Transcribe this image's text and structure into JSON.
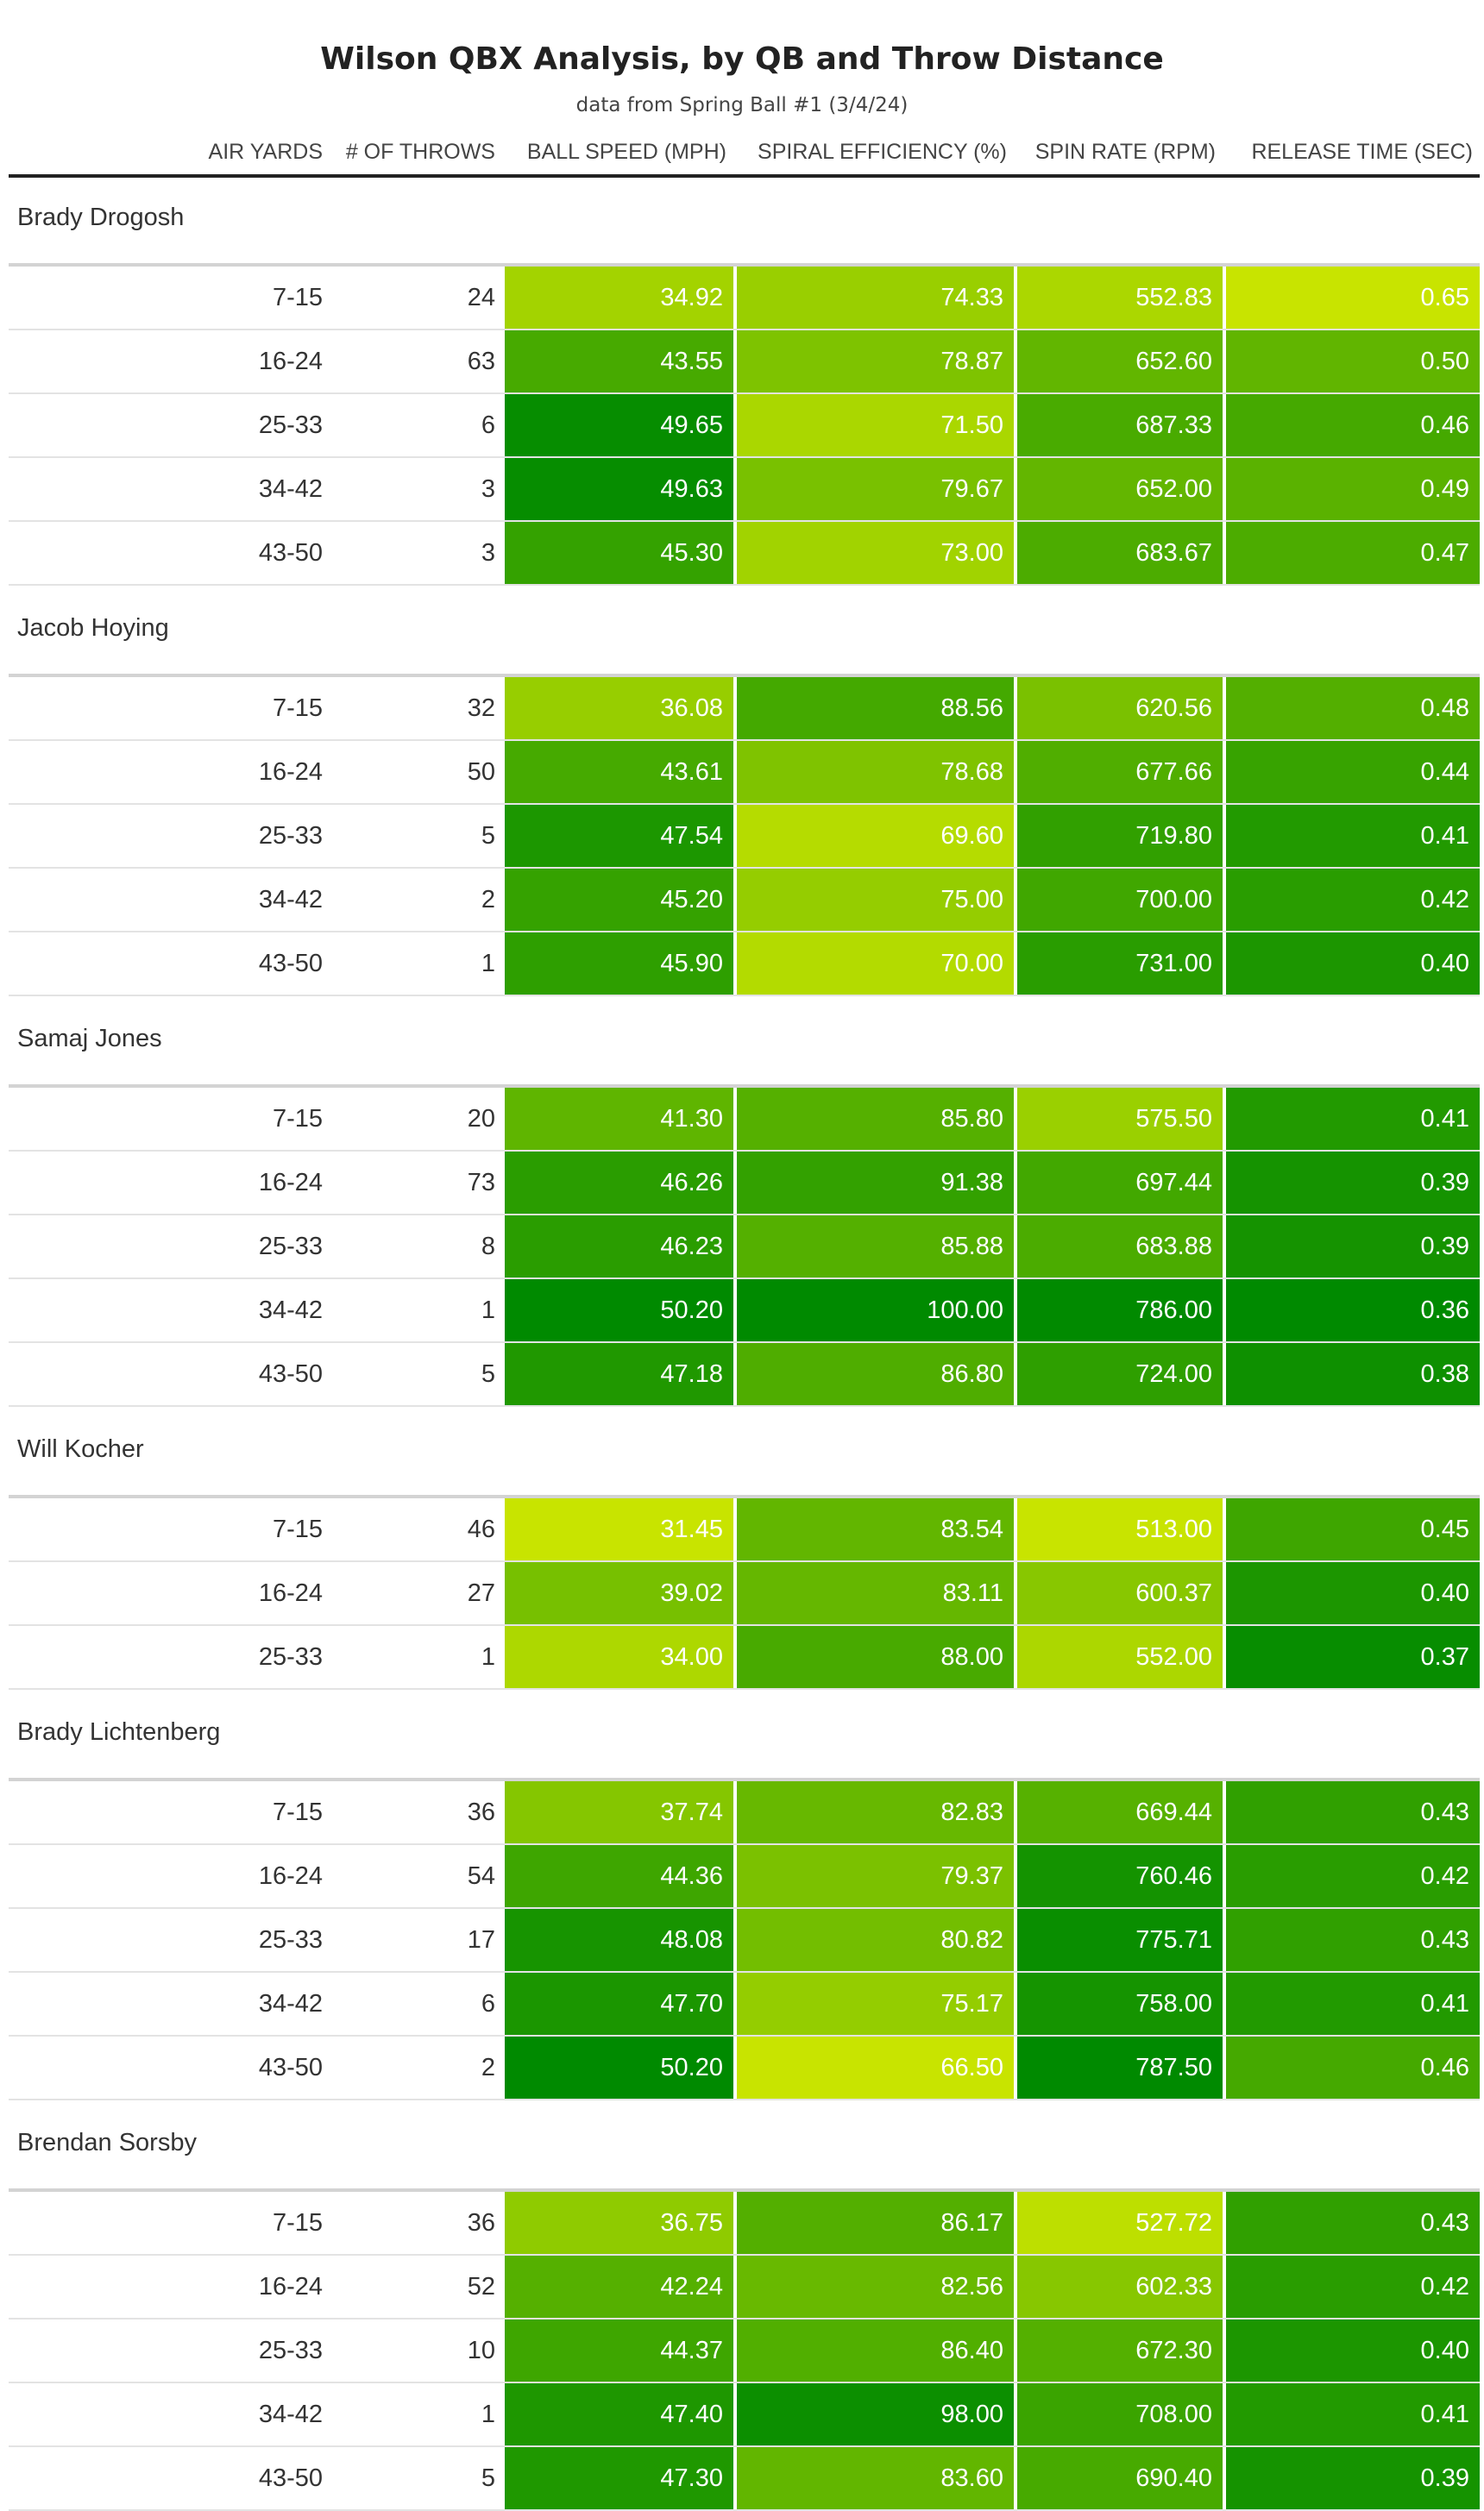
{
  "title": "Wilson QBX Analysis, by QB and Throw Distance",
  "subtitle": "data from Spring Ball #1 (3/4/24)",
  "headers": [
    "AIR YARDS",
    "# OF THROWS",
    "BALL SPEED (MPH)",
    "SPIRAL EFFICIENCY (%)",
    "SPIN RATE (RPM)",
    "RELEASE TIME (SEC)"
  ],
  "chart_data": {
    "type": "table",
    "title": "Wilson QBX Analysis, by QB and Throw Distance",
    "subtitle": "data from Spring Ball #1 (3/4/24)",
    "columns": [
      "AIR YARDS",
      "# OF THROWS",
      "BALL SPEED (MPH)",
      "SPIRAL EFFICIENCY (%)",
      "SPIN RATE (RPM)",
      "RELEASE TIME (SEC)"
    ],
    "color_scale": {
      "low": "#c8e400",
      "high": "#008a00"
    },
    "groups": [
      {
        "name": "Brady Drogosh",
        "rows": [
          [
            "7-15",
            "24",
            "34.92",
            "74.33",
            "552.83",
            "0.65"
          ],
          [
            "16-24",
            "63",
            "43.55",
            "78.87",
            "652.60",
            "0.50"
          ],
          [
            "25-33",
            "6",
            "49.65",
            "71.50",
            "687.33",
            "0.46"
          ],
          [
            "34-42",
            "3",
            "49.63",
            "79.67",
            "652.00",
            "0.49"
          ],
          [
            "43-50",
            "3",
            "45.30",
            "73.00",
            "683.67",
            "0.47"
          ]
        ]
      },
      {
        "name": "Jacob Hoying",
        "rows": [
          [
            "7-15",
            "32",
            "36.08",
            "88.56",
            "620.56",
            "0.48"
          ],
          [
            "16-24",
            "50",
            "43.61",
            "78.68",
            "677.66",
            "0.44"
          ],
          [
            "25-33",
            "5",
            "47.54",
            "69.60",
            "719.80",
            "0.41"
          ],
          [
            "34-42",
            "2",
            "45.20",
            "75.00",
            "700.00",
            "0.42"
          ],
          [
            "43-50",
            "1",
            "45.90",
            "70.00",
            "731.00",
            "0.40"
          ]
        ]
      },
      {
        "name": "Samaj Jones",
        "rows": [
          [
            "7-15",
            "20",
            "41.30",
            "85.80",
            "575.50",
            "0.41"
          ],
          [
            "16-24",
            "73",
            "46.26",
            "91.38",
            "697.44",
            "0.39"
          ],
          [
            "25-33",
            "8",
            "46.23",
            "85.88",
            "683.88",
            "0.39"
          ],
          [
            "34-42",
            "1",
            "50.20",
            "100.00",
            "786.00",
            "0.36"
          ],
          [
            "43-50",
            "5",
            "47.18",
            "86.80",
            "724.00",
            "0.38"
          ]
        ]
      },
      {
        "name": "Will Kocher",
        "rows": [
          [
            "7-15",
            "46",
            "31.45",
            "83.54",
            "513.00",
            "0.45"
          ],
          [
            "16-24",
            "27",
            "39.02",
            "83.11",
            "600.37",
            "0.40"
          ],
          [
            "25-33",
            "1",
            "34.00",
            "88.00",
            "552.00",
            "0.37"
          ]
        ]
      },
      {
        "name": "Brady Lichtenberg",
        "rows": [
          [
            "7-15",
            "36",
            "37.74",
            "82.83",
            "669.44",
            "0.43"
          ],
          [
            "16-24",
            "54",
            "44.36",
            "79.37",
            "760.46",
            "0.42"
          ],
          [
            "25-33",
            "17",
            "48.08",
            "80.82",
            "775.71",
            "0.43"
          ],
          [
            "34-42",
            "6",
            "47.70",
            "75.17",
            "758.00",
            "0.41"
          ],
          [
            "43-50",
            "2",
            "50.20",
            "66.50",
            "787.50",
            "0.46"
          ]
        ]
      },
      {
        "name": "Brendan Sorsby",
        "rows": [
          [
            "7-15",
            "36",
            "36.75",
            "86.17",
            "527.72",
            "0.43"
          ],
          [
            "16-24",
            "52",
            "42.24",
            "82.56",
            "602.33",
            "0.42"
          ],
          [
            "25-33",
            "10",
            "44.37",
            "86.40",
            "672.30",
            "0.40"
          ],
          [
            "34-42",
            "1",
            "47.40",
            "98.00",
            "708.00",
            "0.41"
          ],
          [
            "43-50",
            "5",
            "47.30",
            "83.60",
            "690.40",
            "0.39"
          ]
        ]
      }
    ]
  }
}
